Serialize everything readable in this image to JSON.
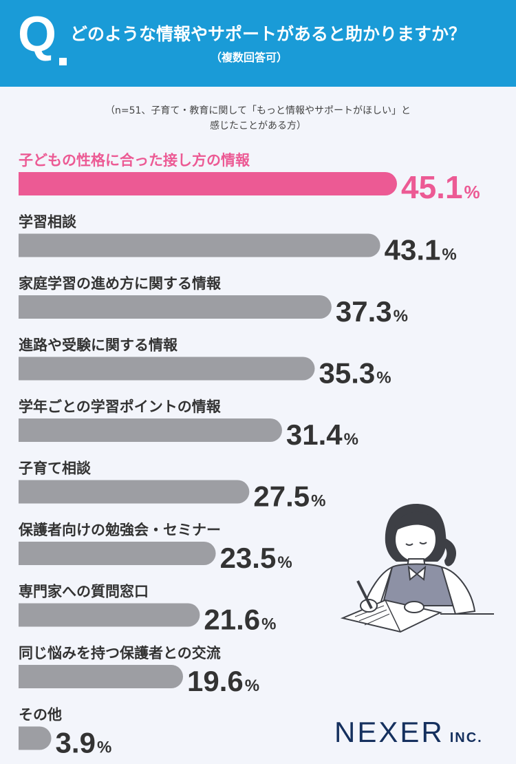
{
  "header": {
    "q_mark": "Q",
    "title": "どのような情報やサポートがあると助かりますか？",
    "subtitle": "（複数回答可）"
  },
  "note": {
    "line1": "（n=51、子育て・教育に関して「もっと情報やサポートがほしい」と",
    "line2": "感じたことがある方）"
  },
  "chart_data": {
    "type": "bar",
    "orientation": "horizontal",
    "categories": [
      "子どもの性格に合った接し方の情報",
      "学習相談",
      "家庭学習の進め方に関する情報",
      "進路や受験に関する情報",
      "学年ごとの学習ポイントの情報",
      "子育て相談",
      "保護者向けの勉強会・セミナー",
      "専門家への質問窓口",
      "同じ悩みを持つ保護者との交流",
      "その他"
    ],
    "values": [
      45.1,
      43.1,
      37.3,
      35.3,
      31.4,
      27.5,
      23.5,
      21.6,
      19.6,
      3.9
    ],
    "value_labels": [
      "45.1",
      "43.1",
      "37.3",
      "35.3",
      "31.4",
      "27.5",
      "23.5",
      "21.6",
      "19.6",
      "3.9"
    ],
    "unit": "%",
    "highlight_index": 0,
    "colors": {
      "highlight": "#ec5a94",
      "bar": "#9d9ea3",
      "label": "#333333"
    },
    "xlim": [
      0,
      45.1
    ]
  },
  "logo": {
    "name": "NEXER",
    "suffix": "INC."
  }
}
